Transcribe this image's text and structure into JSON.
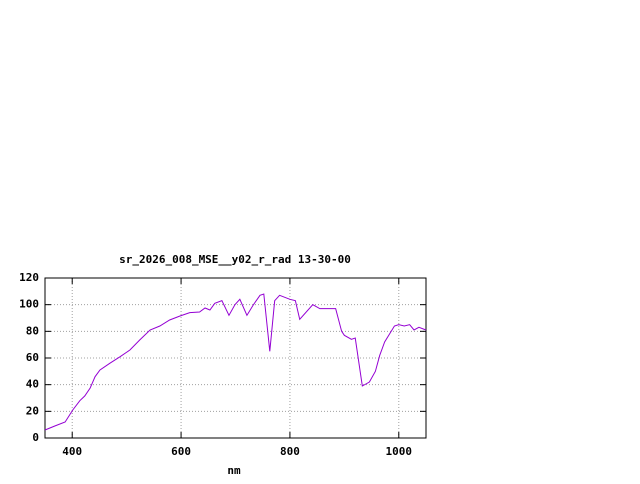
{
  "chart_data": {
    "type": "line",
    "title": "sr_2026_008_MSE__y02_r_rad 13-30-00",
    "x_label": "nm",
    "x": [
      350,
      368,
      387,
      401,
      414,
      423,
      433,
      442,
      451,
      469,
      488,
      506,
      524,
      543,
      561,
      579,
      598,
      616,
      634,
      644,
      653,
      662,
      675,
      688,
      699,
      708,
      721,
      733,
      745,
      752,
      763,
      772,
      781,
      800,
      810,
      818,
      842,
      855,
      884,
      895,
      900,
      913,
      920,
      933,
      946,
      957,
      965,
      974,
      983,
      992,
      1000,
      1010,
      1020,
      1028,
      1037,
      1050
    ],
    "series": [
      {
        "color": "#9400d3",
        "values": [
          6,
          9,
          12,
          21,
          28,
          31.5,
          37.5,
          46,
          51,
          56,
          61,
          66,
          73.5,
          81,
          84,
          88.5,
          91.5,
          94,
          94.5,
          97.5,
          96,
          101,
          103,
          92,
          100,
          104,
          92,
          100,
          107,
          108,
          65,
          103,
          107,
          104,
          103,
          89,
          100,
          97,
          97,
          80,
          77,
          74,
          75,
          39,
          42,
          50,
          62,
          72,
          78,
          84,
          85,
          84,
          85,
          81,
          83,
          81
        ]
      }
    ],
    "xlim": [
      350,
      1050
    ],
    "xticks": [
      400,
      600,
      800,
      1000
    ],
    "ylim": [
      0,
      120
    ],
    "yticks": [
      0,
      20,
      40,
      60,
      80,
      100,
      120
    ],
    "grid": true
  }
}
